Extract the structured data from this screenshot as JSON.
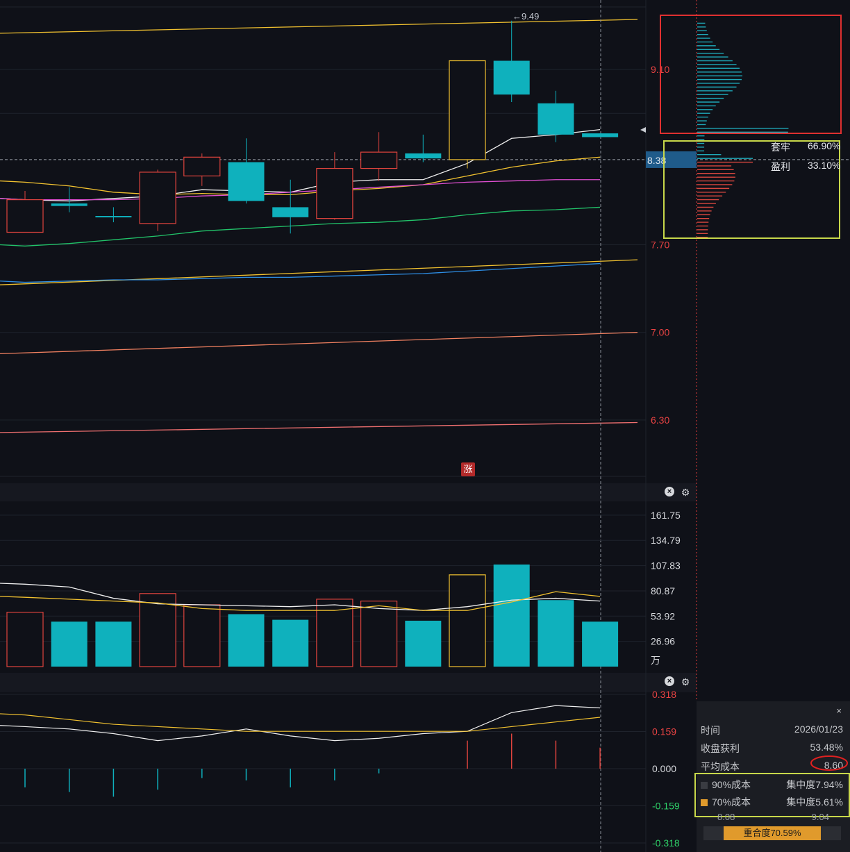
{
  "chart_data": {
    "type": "candlestick",
    "price_axis": {
      "range": [
        5.85,
        9.6
      ],
      "ticks": [
        {
          "value": 9.1,
          "label": "9.10"
        },
        {
          "value": 7.7,
          "label": "7.70"
        },
        {
          "value": 7.0,
          "label": "7.00"
        },
        {
          "value": 6.3,
          "label": "6.30"
        }
      ],
      "current_price": 8.38,
      "current_label": "8.38",
      "high_marker": "←9.49"
    },
    "candles": [
      {
        "open": 7.8,
        "close": 8.06,
        "high": 8.13,
        "low": 7.8
      },
      {
        "open": 8.03,
        "close": 8.01,
        "high": 8.16,
        "low": 7.96
      },
      {
        "open": 7.93,
        "close": 7.92,
        "high": 8.0,
        "low": 7.88
      },
      {
        "open": 7.87,
        "close": 8.28,
        "high": 8.3,
        "low": 7.81
      },
      {
        "open": 8.25,
        "close": 8.4,
        "high": 8.43,
        "low": 8.17
      },
      {
        "open": 8.36,
        "close": 8.05,
        "high": 8.55,
        "low": 8.03
      },
      {
        "open": 8.0,
        "close": 7.92,
        "high": 8.22,
        "low": 7.79
      },
      {
        "open": 7.91,
        "close": 8.31,
        "high": 8.44,
        "low": 7.9
      },
      {
        "open": 8.31,
        "close": 8.44,
        "high": 8.6,
        "low": 8.21
      },
      {
        "open": 8.43,
        "close": 8.39,
        "high": 8.58,
        "low": 8.36
      },
      {
        "open": 8.38,
        "close": 9.17,
        "high": 9.17,
        "low": 8.31
      },
      {
        "open": 9.17,
        "close": 8.9,
        "high": 9.49,
        "low": 8.84
      },
      {
        "open": 8.83,
        "close": 8.58,
        "high": 8.93,
        "low": 8.52
      },
      {
        "open": 8.59,
        "close": 8.56,
        "high": 8.59,
        "low": 8.56
      }
    ],
    "moving_averages": [
      {
        "color": "#f0f0f0",
        "values": [
          8.06,
          8.05,
          8.07,
          8.09,
          8.14,
          8.13,
          8.12,
          8.2,
          8.22,
          8.22,
          8.35,
          8.55,
          8.58,
          8.62
        ]
      },
      {
        "color": "#f2c230",
        "values": [
          8.2,
          8.17,
          8.12,
          8.1,
          8.11,
          8.1,
          8.1,
          8.13,
          8.15,
          8.18,
          8.25,
          8.32,
          8.37,
          8.4
        ]
      },
      {
        "color": "#e04fd2",
        "values": [
          8.06,
          8.06,
          8.06,
          8.07,
          8.09,
          8.1,
          8.12,
          8.14,
          8.16,
          8.18,
          8.2,
          8.21,
          8.22,
          8.22
        ]
      },
      {
        "color": "#22c46a",
        "values": [
          7.69,
          7.71,
          7.74,
          7.77,
          7.81,
          7.83,
          7.85,
          7.87,
          7.88,
          7.9,
          7.94,
          7.97,
          7.98,
          8.0
        ]
      },
      {
        "color": "#2e8fe6",
        "values": [
          7.4,
          7.41,
          7.42,
          7.42,
          7.43,
          7.44,
          7.44,
          7.45,
          7.46,
          7.47,
          7.49,
          7.51,
          7.53,
          7.55
        ]
      }
    ],
    "channel_lines": [
      {
        "color": "#f2c230",
        "from": 9.39,
        "to": 9.5
      },
      {
        "color": "#f2c230",
        "from": 7.38,
        "to": 7.58
      },
      {
        "color": "#f08060",
        "from": 6.83,
        "to": 7.0
      },
      {
        "color": "#f07070",
        "from": 6.2,
        "to": 6.28
      }
    ],
    "volume": {
      "unit": "万",
      "range": [
        0,
        175
      ],
      "ticks": [
        "161.75",
        "134.79",
        "107.83",
        "80.87",
        "53.92",
        "26.96"
      ],
      "tick_values": [
        161.75,
        134.79,
        107.83,
        80.87,
        53.92,
        26.96
      ],
      "values": [
        58,
        48,
        48,
        78,
        66,
        56,
        50,
        72,
        70,
        49,
        98,
        109,
        71,
        48
      ],
      "ma_white": [
        88,
        85,
        73,
        67,
        66,
        65,
        64,
        66,
        62,
        60,
        64,
        71,
        73,
        70
      ],
      "ma_yellow": [
        74,
        72,
        70,
        68,
        62,
        60,
        60,
        60,
        65,
        60,
        60,
        69,
        80,
        75
      ]
    },
    "macd": {
      "range": [
        -0.318,
        0.318
      ],
      "ticks": [
        "0.318",
        "0.159",
        "0.000",
        "-0.159",
        "-0.318"
      ],
      "tick_values": [
        0.318,
        0.159,
        0.0,
        -0.159,
        -0.318
      ],
      "dif": [
        0.18,
        0.17,
        0.15,
        0.12,
        0.14,
        0.17,
        0.14,
        0.12,
        0.13,
        0.15,
        0.16,
        0.24,
        0.27,
        0.26
      ],
      "dea": [
        0.23,
        0.21,
        0.19,
        0.18,
        0.17,
        0.16,
        0.16,
        0.16,
        0.16,
        0.16,
        0.16,
        0.18,
        0.2,
        0.22
      ],
      "hist": [
        -0.08,
        -0.1,
        -0.12,
        -0.09,
        -0.04,
        -0.05,
        -0.08,
        -0.05,
        -0.02,
        0.0,
        0.12,
        0.15,
        0.12,
        0.09
      ]
    },
    "chip_distribution": {
      "trapped_label": "套牢",
      "trapped_pct": "66.90%",
      "profit_label": "盈利",
      "profit_pct": "33.10%"
    }
  },
  "badge": "涨",
  "info_panel": {
    "close": "×",
    "rows": [
      {
        "label": "时间",
        "value": "2026/01/23"
      },
      {
        "label": "收盘获利",
        "value": "53.48%"
      },
      {
        "label": "平均成本",
        "value": "8.60"
      }
    ],
    "cost90": {
      "label": "90%成本",
      "conc": "集中度7.94%",
      "color": "#3a3c42"
    },
    "cost70": {
      "label": "70%成本",
      "conc": "集中度5.61%",
      "color": "#e09a2c"
    },
    "range70": {
      "low": "8.08",
      "high": "9.04"
    },
    "overlap": {
      "label": "重合度70.59%",
      "value": 0.7059
    }
  },
  "colors": {
    "up": "#e0443e",
    "down": "#0fb1bd",
    "ten_up": "#f2c230",
    "grid": "#1f232c"
  }
}
